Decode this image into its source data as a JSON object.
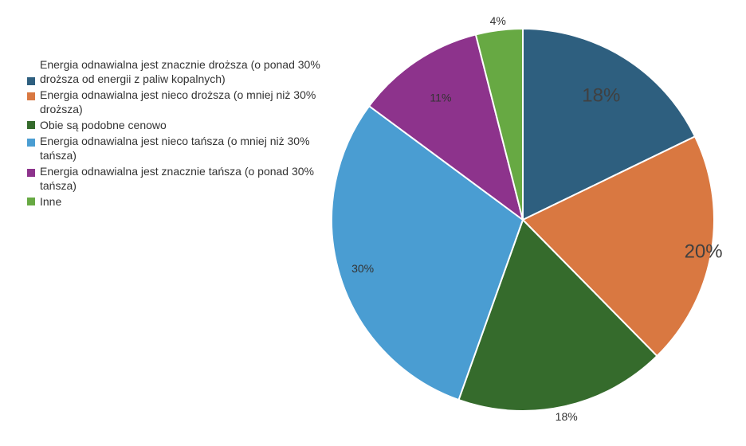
{
  "chart_data": {
    "type": "pie",
    "slices": [
      {
        "label": "Energia odnawialna jest znacznie droższa (o ponad 30% droższa od energii z paliw kopalnych)",
        "value": 18,
        "value_label": "18%",
        "color": "#2e5f7f"
      },
      {
        "label": "Energia odnawialna jest nieco droższa (o mniej niż 30% droższa)",
        "value": 20,
        "value_label": "20%",
        "color": "#d97841"
      },
      {
        "label": "Obie są podobne cenowo",
        "value": 18,
        "value_label": "18%",
        "color": "#356b2c"
      },
      {
        "label": "Energia odnawialna jest nieco tańsza (o mniej niż 30% tańsza)",
        "value": 30,
        "value_label": "30%",
        "color": "#4a9dd2"
      },
      {
        "label": "Energia odnawialna jest znacznie tańsza (o ponad 30% tańsza)",
        "value": 11,
        "value_label": "11%",
        "color": "#8d338c"
      },
      {
        "label": "Inne",
        "value": 4,
        "value_label": "4%",
        "color": "#67a943"
      }
    ],
    "legend_position": "left",
    "start_angle": "12 o'clock",
    "direction": "clockwise"
  }
}
